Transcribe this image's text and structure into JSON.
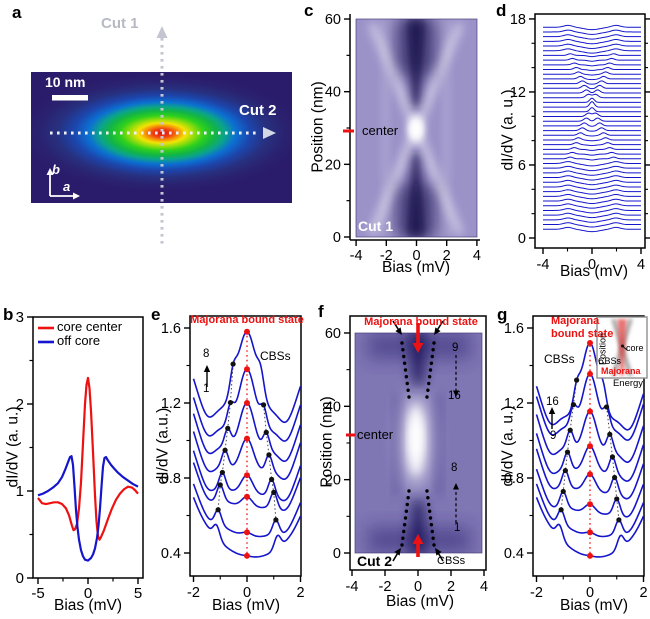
{
  "figure": {
    "bg": "#ffffff"
  },
  "colors": {
    "curve_blue": "#1515cc",
    "accent_red": "#ee1111",
    "map_c_bg": "#9b92c8",
    "map_f_bg": "#7f76b4",
    "map_dark": "#1c1350",
    "panel_a_bg": "#2a1c6b",
    "gray_label": "#b7bac4"
  },
  "panel_a": {
    "letter": "a",
    "cut1": "Cut 1",
    "cut2": "Cut 2",
    "scalebar": "10 nm",
    "axis_b": "b",
    "axis_a": "a"
  },
  "panel_b": {
    "letter": "b",
    "ylabel": "dI/dV (a. u.)",
    "xlabel": "Bias (mV)",
    "yticks": [
      0,
      1,
      2,
      3
    ],
    "xticks": [
      -5,
      0,
      5
    ],
    "legend": [
      {
        "label": "core center",
        "color": "#ee1111"
      },
      {
        "label": "off core",
        "color": "#1515cc"
      }
    ]
  },
  "panel_c": {
    "letter": "c",
    "ylabel": "Position (nm)",
    "xlabel": "Bias (mV)",
    "yticks": [
      0,
      20,
      40,
      60
    ],
    "xticks": [
      -4,
      -2,
      0,
      2,
      4
    ],
    "center": "center",
    "cut": "Cut 1"
  },
  "panel_d": {
    "letter": "d",
    "ylabel": "dI/dV (a. u.)",
    "xlabel": "Bias (mV)",
    "yticks": [
      0,
      6,
      12,
      18
    ],
    "xticks": [
      -4,
      0,
      4
    ]
  },
  "panel_e": {
    "letter": "e",
    "ylabel": "dI/dV (a.u.)",
    "xlabel": "Bias (mV)",
    "yticks": [
      0.4,
      0.8,
      1.2,
      1.6
    ],
    "xticks": [
      -2,
      0,
      2
    ],
    "title": "Majorana bound state",
    "cbs": "CBSs",
    "top_num": "8",
    "bottom_num": "1"
  },
  "panel_f": {
    "letter": "f",
    "ylabel": "Position (nm)",
    "xlabel": "Bias (mV)",
    "yticks": [
      0,
      20,
      40,
      60
    ],
    "xticks": [
      -4,
      -2,
      0,
      2,
      4
    ],
    "title": "Majorana bound state",
    "center": "center",
    "cut": "Cut 2",
    "cbs": "CBSs",
    "upper_start": "9",
    "upper_end": "16",
    "lower_end": "8",
    "lower_start": "1"
  },
  "panel_g": {
    "letter": "g",
    "ylabel": "dI/dV (a. u.)",
    "xlabel": "Bias (mV)",
    "yticks": [
      0.4,
      0.8,
      1.2,
      1.6
    ],
    "xticks": [
      -2,
      0,
      2
    ],
    "title_line1": "Majorana",
    "title_line2": "bound state",
    "cbs": "CBSs",
    "top_num": "16",
    "bottom_num": "9",
    "inset": {
      "position": "Position",
      "energy": "Energy",
      "core": "core",
      "cbs": "CBSs",
      "majorana": "Majorana"
    }
  },
  "chart_data": {
    "a": {
      "type": "heatmap",
      "description": "zero-bias dI/dV map of an elongated vortex core, bright maximum at core center",
      "scale_bar_nm": 10,
      "cuts": [
        "Cut 1",
        "Cut 2"
      ]
    },
    "b": {
      "type": "line",
      "xlabel": "Bias (mV)",
      "ylabel": "dI/dV (a. u.)",
      "xlim": [
        -5,
        5
      ],
      "ylim": [
        0,
        3
      ],
      "series": [
        {
          "name": "core center",
          "color": "#ee1111",
          "points": [
            [
              -5,
              0.92
            ],
            [
              -4.6,
              0.86
            ],
            [
              -4.2,
              0.85
            ],
            [
              -3.8,
              0.86
            ],
            [
              -3.4,
              0.87
            ],
            [
              -3,
              0.87
            ],
            [
              -2.6,
              0.85
            ],
            [
              -2.2,
              0.8
            ],
            [
              -1.9,
              0.72
            ],
            [
              -1.6,
              0.6
            ],
            [
              -1.45,
              0.55
            ],
            [
              -1.3,
              0.56
            ],
            [
              -1.1,
              0.62
            ],
            [
              -0.9,
              0.8
            ],
            [
              -0.7,
              1.1
            ],
            [
              -0.5,
              1.55
            ],
            [
              -0.3,
              2.0
            ],
            [
              -0.15,
              2.22
            ],
            [
              0,
              2.3
            ],
            [
              0.15,
              2.18
            ],
            [
              0.3,
              1.92
            ],
            [
              0.5,
              1.45
            ],
            [
              0.7,
              0.95
            ],
            [
              0.85,
              0.65
            ],
            [
              1,
              0.48
            ],
            [
              1.15,
              0.44
            ],
            [
              1.3,
              0.47
            ],
            [
              1.6,
              0.55
            ],
            [
              2,
              0.68
            ],
            [
              2.4,
              0.8
            ],
            [
              2.8,
              0.9
            ],
            [
              3.2,
              0.97
            ],
            [
              3.6,
              1.02
            ],
            [
              4,
              1.05
            ],
            [
              4.4,
              1.04
            ],
            [
              4.7,
              1.01
            ],
            [
              5,
              0.97
            ]
          ]
        },
        {
          "name": "off core",
          "color": "#1515cc",
          "points": [
            [
              -5,
              0.95
            ],
            [
              -4.5,
              0.97
            ],
            [
              -4,
              1.0
            ],
            [
              -3.5,
              1.04
            ],
            [
              -3,
              1.09
            ],
            [
              -2.6,
              1.16
            ],
            [
              -2.3,
              1.24
            ],
            [
              -2,
              1.33
            ],
            [
              -1.8,
              1.39
            ],
            [
              -1.65,
              1.4
            ],
            [
              -1.5,
              1.3
            ],
            [
              -1.35,
              1.05
            ],
            [
              -1.2,
              0.78
            ],
            [
              -1.05,
              0.58
            ],
            [
              -0.9,
              0.44
            ],
            [
              -0.7,
              0.32
            ],
            [
              -0.5,
              0.25
            ],
            [
              -0.3,
              0.21
            ],
            [
              0,
              0.2
            ],
            [
              0.3,
              0.23
            ],
            [
              0.5,
              0.27
            ],
            [
              0.7,
              0.34
            ],
            [
              0.9,
              0.46
            ],
            [
              1.05,
              0.6
            ],
            [
              1.2,
              0.8
            ],
            [
              1.35,
              1.05
            ],
            [
              1.5,
              1.28
            ],
            [
              1.65,
              1.38
            ],
            [
              1.8,
              1.39
            ],
            [
              2,
              1.35
            ],
            [
              2.3,
              1.3
            ],
            [
              2.6,
              1.26
            ],
            [
              3,
              1.21
            ],
            [
              3.5,
              1.16
            ],
            [
              4,
              1.12
            ],
            [
              4.5,
              1.08
            ],
            [
              5,
              1.05
            ]
          ]
        }
      ]
    },
    "c": {
      "type": "heatmap",
      "xlabel": "Bias (mV)",
      "ylabel": "Position (nm)",
      "xlim": [
        -4,
        4
      ],
      "ylim": [
        0,
        60
      ],
      "core_center_nm": 30,
      "features": "bright X-shaped CBS crossing converging at vortex core center; dark zero-bias bands far from core"
    },
    "d": {
      "type": "waterfall",
      "xlim": [
        -4,
        4
      ],
      "ylim": [
        0,
        18
      ],
      "n_curves": 44,
      "base_start": 0.72,
      "base_step": 0.386,
      "center_index": 26,
      "zbp_amp": 0.45,
      "zbp_width_mV": 0.26,
      "dispersion_mV_per_curve": 0.165,
      "coherence_peak_mV": 1.95,
      "coherence_amp": 0.155,
      "gap_depth": 0.2
    },
    "e": {
      "type": "waterfall",
      "xlim": [
        -2,
        2
      ],
      "ylim": [
        0.28,
        1.67
      ],
      "curves": [
        {
          "n": 8,
          "zb": 1.58,
          "mbs": 0.42,
          "w": 0.5,
          "cx": 0.52,
          "ca": 0.1,
          "dip": 0.06,
          "rise": 0.26,
          "u": 0,
          "asym": 0.02
        },
        {
          "n": 7,
          "zb": 1.38,
          "mbs": 0.32,
          "w": 0.42,
          "cx": 0.62,
          "ca": 0.1,
          "dip": 0.06,
          "rise": 0.26,
          "u": 0,
          "asym": 0.02
        },
        {
          "n": 6,
          "zb": 1.2,
          "mbs": 0.25,
          "w": 0.38,
          "cx": 0.72,
          "ca": 0.095,
          "dip": 0.06,
          "rise": 0.25,
          "u": 0.02,
          "asym": 0.03
        },
        {
          "n": 5,
          "zb": 1.01,
          "mbs": 0.17,
          "w": 0.34,
          "cx": 0.82,
          "ca": 0.09,
          "dip": 0.055,
          "rise": 0.24,
          "u": 0.04,
          "asym": 0.03
        },
        {
          "n": 4,
          "zb": 0.815,
          "mbs": 0.1,
          "w": 0.3,
          "cx": 0.92,
          "ca": 0.085,
          "dip": 0.05,
          "rise": 0.21,
          "u": 0.07,
          "asym": 0.04
        },
        {
          "n": 3,
          "zb": 0.7,
          "mbs": 0.055,
          "w": 0.28,
          "cx": 1.0,
          "ca": 0.08,
          "dip": 0.045,
          "rise": 0.17,
          "u": 0.1,
          "asym": 0.04
        },
        {
          "n": 2,
          "zb": 0.51,
          "mbs": 0.02,
          "w": 0.27,
          "cx": 1.08,
          "ca": 0.075,
          "dip": 0.03,
          "rise": 0.12,
          "u": 0.16,
          "asym": 0.05
        },
        {
          "n": 1,
          "zb": 0.385,
          "mbs": 0.005,
          "w": 0.27,
          "cx": 1.14,
          "ca": 0.07,
          "dip": 0,
          "rise": 0.08,
          "u": 0.22,
          "asym": 0.05
        }
      ]
    },
    "f": {
      "type": "heatmap",
      "xlabel": "Bias (mV)",
      "ylabel": "Position (nm)",
      "xlim": [
        -4,
        4
      ],
      "ylim": [
        0,
        60
      ],
      "core_center_nm": 31,
      "cbs_dispersion_upper": {
        "nm": [
          57,
          42
        ],
        "bias_abs_mV": [
          0.95,
          0.5
        ]
      },
      "cbs_dispersion_lower": {
        "nm": [
          3,
          18
        ],
        "bias_abs_mV": [
          0.95,
          0.5
        ]
      },
      "spectra_indices_upper": [
        9,
        16
      ],
      "spectra_indices_lower": [
        1,
        8
      ]
    },
    "g": {
      "type": "waterfall",
      "xlim": [
        -2,
        2
      ],
      "ylim": [
        0.28,
        1.67
      ],
      "curves": [
        {
          "n": 16,
          "zb": 1.52,
          "mbs": 0.4,
          "w": 0.42,
          "cx": 0.5,
          "ca": 0.1,
          "dip": 0.06,
          "rise": 0.26,
          "u": 0,
          "asym": 0.02
        },
        {
          "n": 15,
          "zb": 1.355,
          "mbs": 0.29,
          "w": 0.38,
          "cx": 0.62,
          "ca": 0.1,
          "dip": 0.06,
          "rise": 0.26,
          "u": 0,
          "asym": 0.02
        },
        {
          "n": 14,
          "zb": 1.155,
          "mbs": 0.21,
          "w": 0.34,
          "cx": 0.74,
          "ca": 0.095,
          "dip": 0.06,
          "rise": 0.25,
          "u": 0.02,
          "asym": 0.03
        },
        {
          "n": 13,
          "zb": 0.97,
          "mbs": 0.14,
          "w": 0.31,
          "cx": 0.84,
          "ca": 0.09,
          "dip": 0.055,
          "rise": 0.24,
          "u": 0.04,
          "asym": 0.03
        },
        {
          "n": 12,
          "zb": 0.82,
          "mbs": 0.095,
          "w": 0.29,
          "cx": 0.92,
          "ca": 0.085,
          "dip": 0.05,
          "rise": 0.21,
          "u": 0.07,
          "asym": 0.04
        },
        {
          "n": 11,
          "zb": 0.66,
          "mbs": 0.05,
          "w": 0.28,
          "cx": 1.0,
          "ca": 0.08,
          "dip": 0.045,
          "rise": 0.17,
          "u": 0.1,
          "asym": 0.04
        },
        {
          "n": 10,
          "zb": 0.51,
          "mbs": 0.02,
          "w": 0.27,
          "cx": 1.08,
          "ca": 0.075,
          "dip": 0.03,
          "rise": 0.12,
          "u": 0.16,
          "asym": 0.05
        },
        {
          "n": 9,
          "zb": 0.385,
          "mbs": 0.005,
          "w": 0.27,
          "cx": 1.14,
          "ca": 0.07,
          "dip": 0,
          "rise": 0.08,
          "u": 0.22,
          "asym": 0.05
        }
      ]
    }
  }
}
